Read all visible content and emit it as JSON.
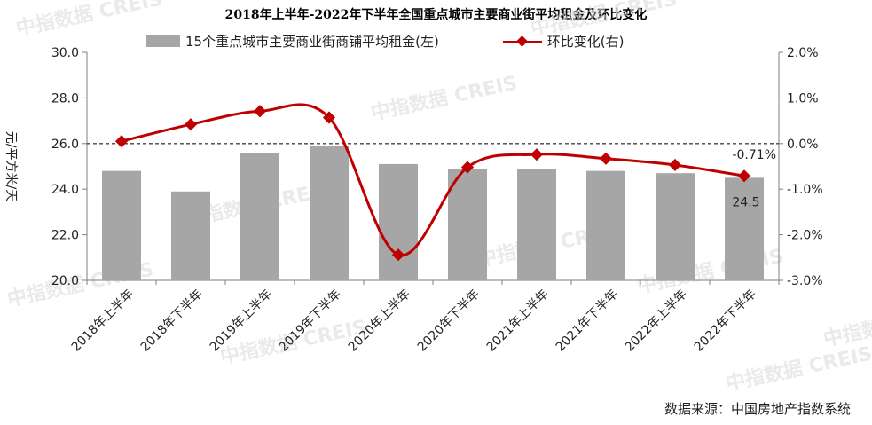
{
  "chart_data": {
    "type": "bar+line",
    "title": "2018年上半年-2022年下半年全国重点城市主要商业街平均租金及环比变化",
    "ylabel_left": "元/平方米/天",
    "categories": [
      "2018年上半年",
      "2018年下半年",
      "2019年上半年",
      "2019年下半年",
      "2020年上半年",
      "2020年下半年",
      "2021年上半年",
      "2021年下半年",
      "2022年上半年",
      "2022年下半年"
    ],
    "series": [
      {
        "name": "15个重点城市主要商业街商铺平均租金(左)",
        "type": "bar",
        "axis": "left",
        "color": "#a6a6a6",
        "values": [
          24.8,
          23.9,
          25.6,
          25.9,
          25.1,
          24.9,
          24.9,
          24.8,
          24.7,
          24.5
        ]
      },
      {
        "name": "环比变化(右)",
        "type": "line",
        "axis": "right",
        "color": "#c00000",
        "values": [
          0.05,
          0.42,
          0.71,
          0.57,
          -2.44,
          -0.52,
          -0.24,
          -0.33,
          -0.47,
          -0.71
        ]
      }
    ],
    "y_left": {
      "min": 20,
      "max": 30,
      "ticks": [
        "20.0",
        "22.0",
        "24.0",
        "26.0",
        "28.0",
        "30.0"
      ]
    },
    "y_right": {
      "min": -3,
      "max": 2,
      "ticks": [
        "-3.0%",
        "-2.0%",
        "-1.0%",
        "0.0%",
        "1.0%",
        "2.0%"
      ]
    },
    "annotations": {
      "last_bar_label": "24.5",
      "last_line_label": "-0.71%"
    },
    "legend_position": "top"
  },
  "watermark": "中指数据 CREIS",
  "source": "数据来源：中国房地产指数系统"
}
